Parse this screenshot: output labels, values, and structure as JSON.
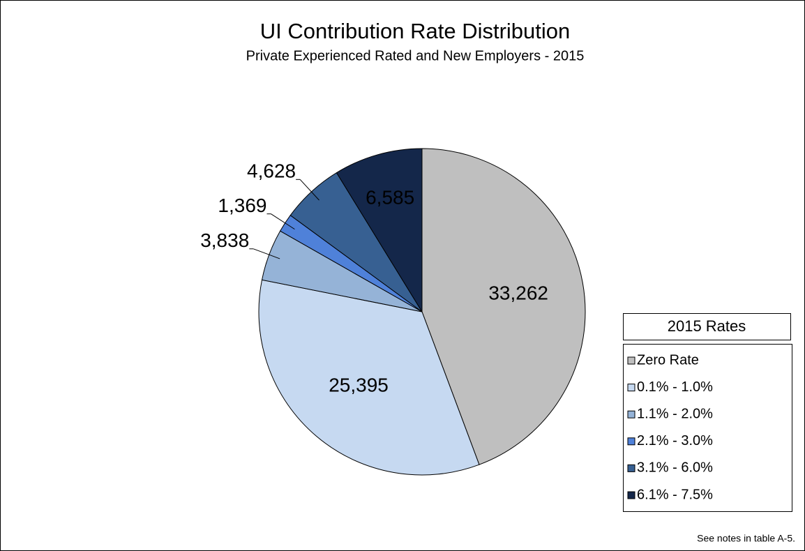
{
  "chart_data": {
    "type": "pie",
    "title": "UI Contribution Rate Distribution",
    "subtitle": "Private Experienced Rated and New Employers - 2015",
    "categories": [
      "Zero Rate",
      "0.1% - 1.0%",
      "1.1% - 2.0%",
      "2.1% - 3.0%",
      "3.1% - 6.0%",
      "6.1% - 7.5%"
    ],
    "values": [
      33262,
      25395,
      3838,
      1369,
      4628,
      6585
    ],
    "value_labels": [
      "33,262",
      "25,395",
      "3,838",
      "1,369",
      "4,628",
      "6,585"
    ],
    "colors": [
      "#bfbfbf",
      "#c6d9f1",
      "#95b3d7",
      "#4f81d9",
      "#376092",
      "#14274a"
    ],
    "legend_title": "2015 Rates",
    "legend": "right",
    "note": "See notes in table A-5."
  }
}
